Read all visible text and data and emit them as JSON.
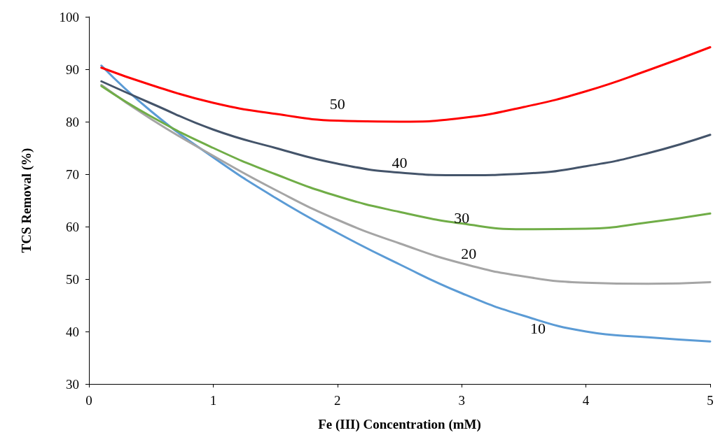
{
  "chart_data": {
    "type": "line",
    "xlabel": "Fe (III) Concentration (mM)",
    "ylabel": "TCS Removal (%)",
    "x": [
      0.1,
      0.5,
      1,
      1.5,
      2,
      2.5,
      3,
      3.5,
      4,
      4.5,
      5
    ],
    "series": [
      {
        "name": "10",
        "color": "#5b9bd5",
        "values": [
          90.7,
          82,
          73.2,
          65.5,
          58.8,
          52.8,
          47.3,
          43,
          40,
          38.9,
          38.1
        ]
      },
      {
        "name": "20",
        "color": "#a5a5a5",
        "values": [
          87,
          80.5,
          73.5,
          67,
          61.3,
          56.8,
          53,
          50.5,
          49.3,
          49.1,
          49.4
        ]
      },
      {
        "name": "30",
        "color": "#70ad47",
        "values": [
          86.8,
          81,
          75,
          70,
          65.8,
          62.8,
          60.6,
          59.5,
          59.6,
          60.8,
          62.5
        ]
      },
      {
        "name": "40",
        "color": "#44546a",
        "values": [
          87.7,
          83.5,
          78.5,
          75,
          72,
          70.3,
          69.8,
          70.1,
          71.5,
          74,
          77.5
        ]
      },
      {
        "name": "50",
        "color": "#ff0000",
        "values": [
          90.3,
          87,
          83.6,
          81.5,
          80.2,
          80,
          80.7,
          82.8,
          85.8,
          89.8,
          94.2
        ]
      }
    ],
    "xlim": [
      0,
      5
    ],
    "xticks": [
      0,
      1,
      2,
      3,
      4,
      5
    ],
    "ylim": [
      30,
      100
    ],
    "yticks": [
      30,
      40,
      50,
      60,
      70,
      80,
      90,
      100
    ],
    "grid": false,
    "legend": false,
    "marker": "none",
    "line_style": "solid"
  }
}
